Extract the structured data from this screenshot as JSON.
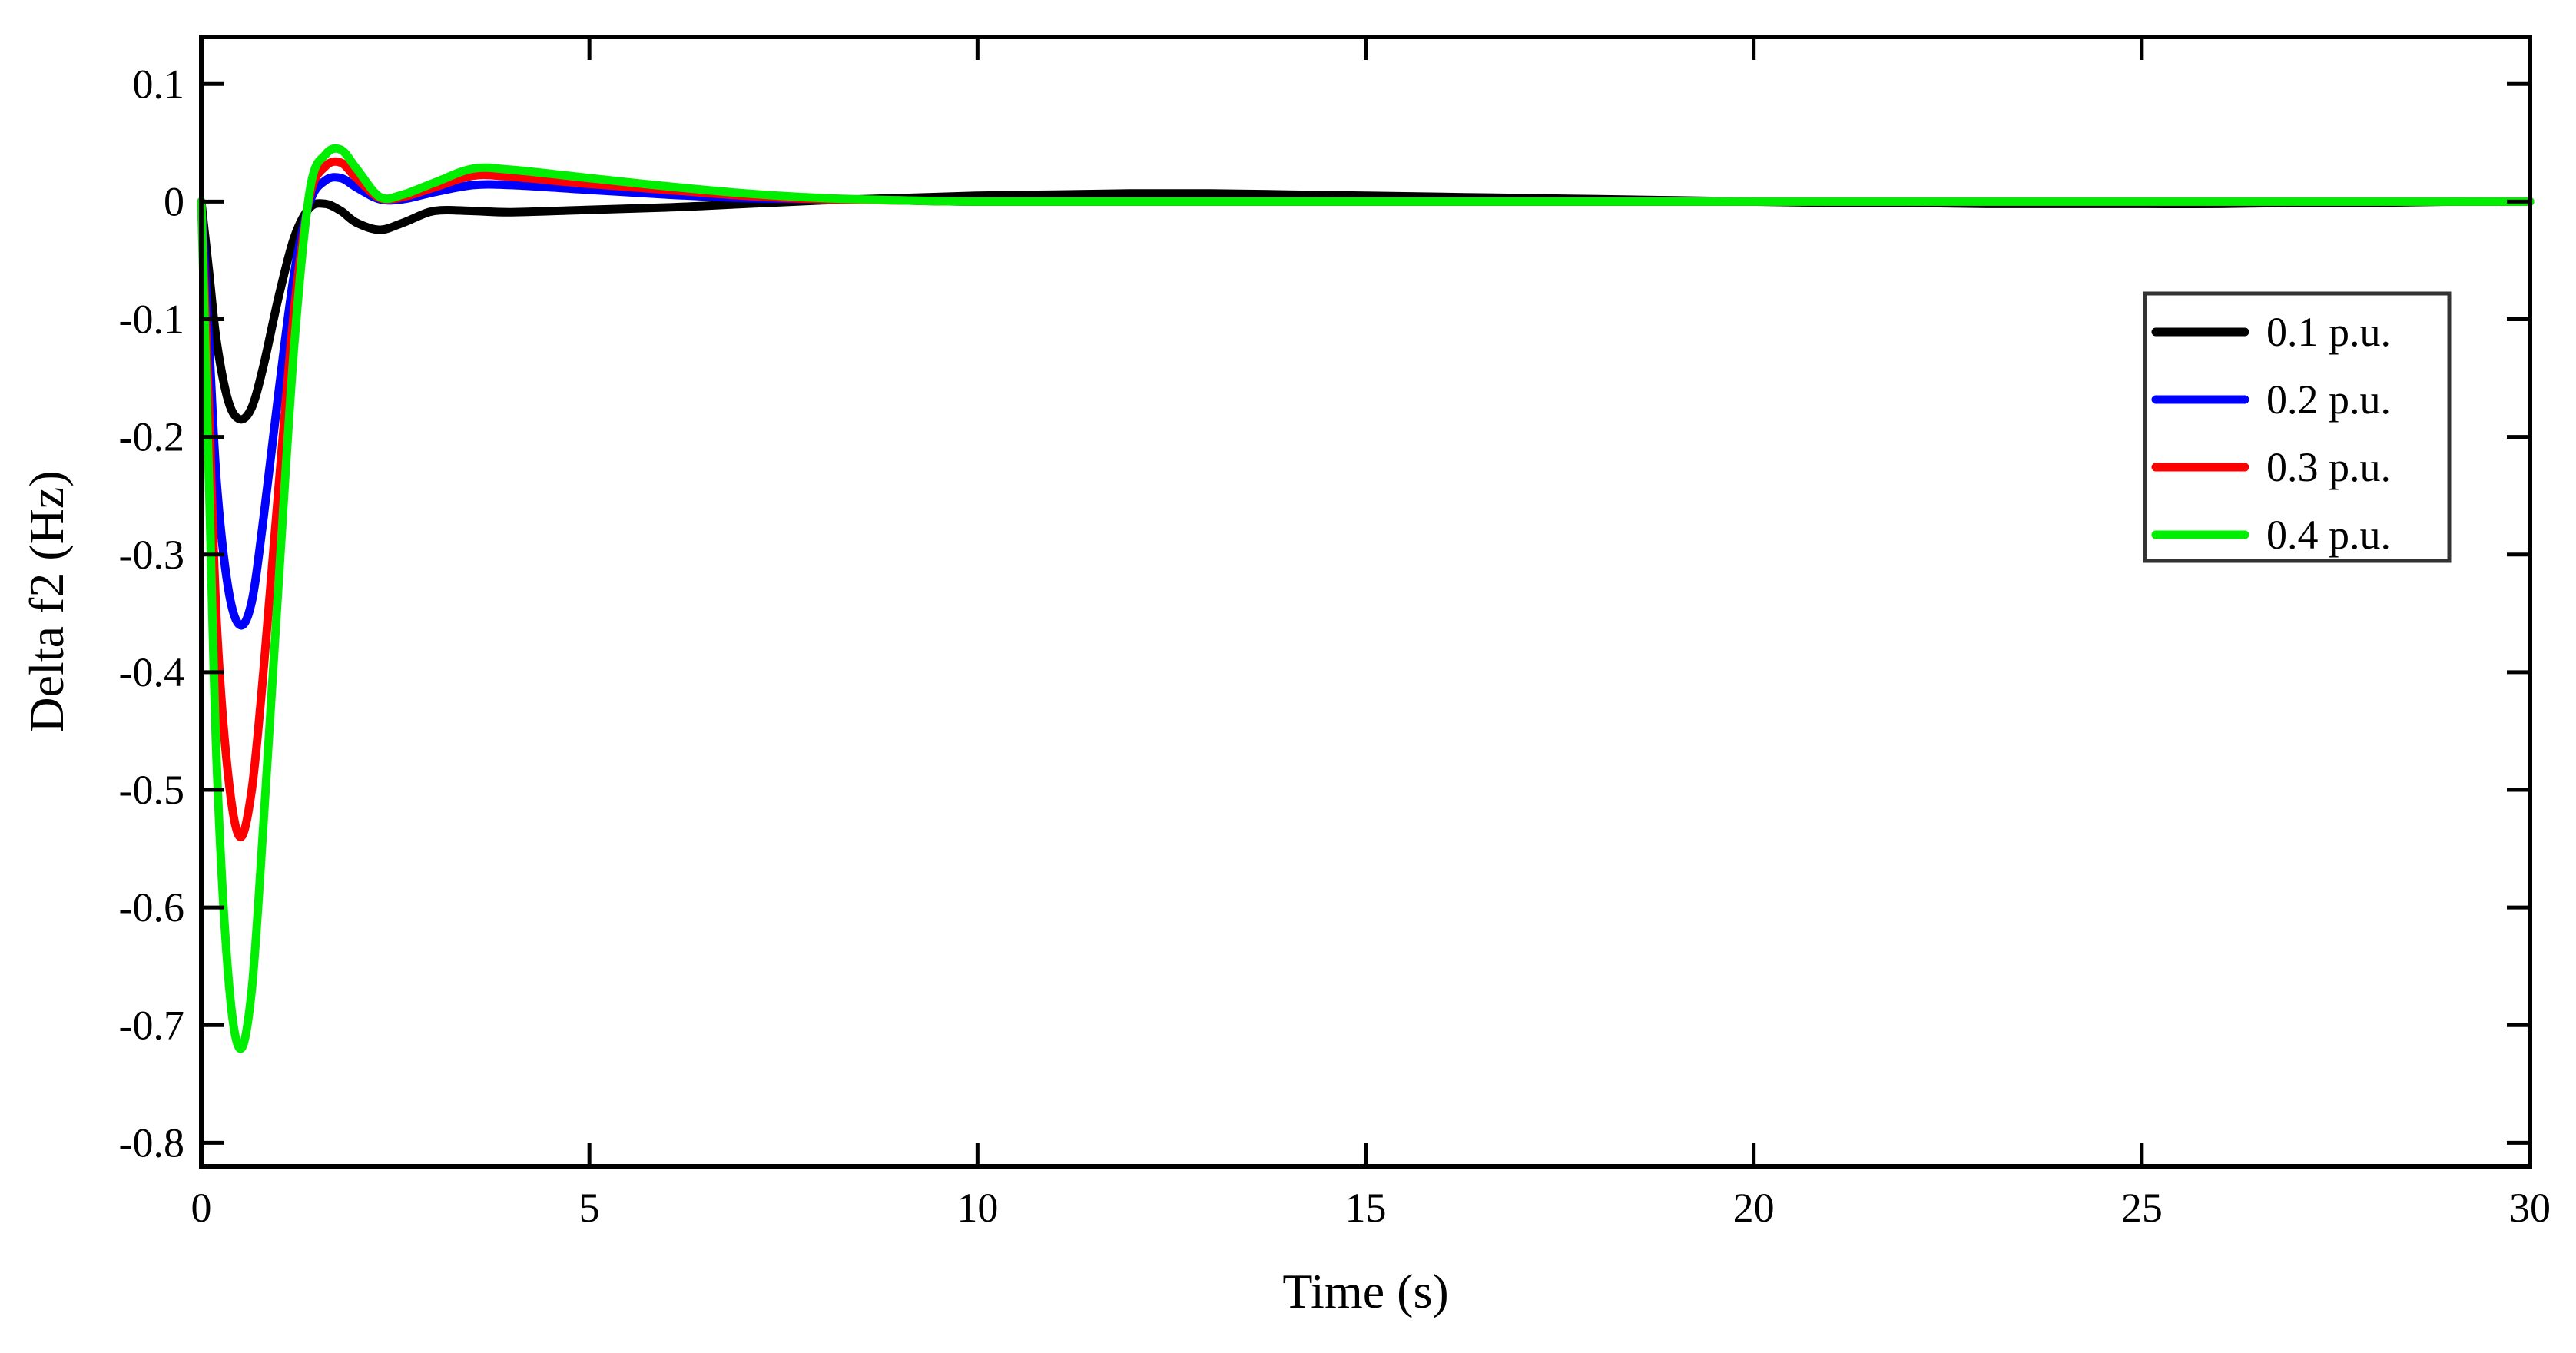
{
  "chart_data": {
    "type": "line",
    "title": "",
    "xlabel": "Time (s)",
    "ylabel": "Delta f2 (Hz)",
    "xlim": [
      0,
      30
    ],
    "ylim": [
      -0.82,
      0.14
    ],
    "x_ticks": [
      0,
      5,
      10,
      15,
      20,
      25,
      30
    ],
    "y_ticks": [
      0.1,
      0,
      -0.1,
      -0.2,
      -0.3,
      -0.4,
      -0.5,
      -0.6,
      -0.7,
      -0.8
    ],
    "x_tick_labels": [
      "0",
      "5",
      "10",
      "15",
      "20",
      "25",
      "30"
    ],
    "y_tick_labels": [
      "0.1",
      "0",
      "-0.1",
      "-0.2",
      "-0.3",
      "-0.4",
      "-0.5",
      "-0.6",
      "-0.7",
      "-0.8"
    ],
    "grid": false,
    "legend_position": "right",
    "series": [
      {
        "name": "0.1 p.u.",
        "color": "#000000",
        "points": [
          [
            0,
            0
          ],
          [
            0.1,
            -0.06
          ],
          [
            0.2,
            -0.12
          ],
          [
            0.35,
            -0.17
          ],
          [
            0.5,
            -0.185
          ],
          [
            0.65,
            -0.175
          ],
          [
            0.8,
            -0.14
          ],
          [
            1.0,
            -0.08
          ],
          [
            1.2,
            -0.03
          ],
          [
            1.4,
            -0.005
          ],
          [
            1.6,
            -0.002
          ],
          [
            1.8,
            -0.008
          ],
          [
            2.0,
            -0.018
          ],
          [
            2.3,
            -0.024
          ],
          [
            2.6,
            -0.018
          ],
          [
            3.0,
            -0.008
          ],
          [
            3.5,
            -0.008
          ],
          [
            4.0,
            -0.009
          ],
          [
            5.0,
            -0.007
          ],
          [
            6.0,
            -0.005
          ],
          [
            7.0,
            -0.002
          ],
          [
            8.0,
            0.001
          ],
          [
            9.0,
            0.003
          ],
          [
            10.0,
            0.005
          ],
          [
            11.0,
            0.006
          ],
          [
            12.0,
            0.007
          ],
          [
            13.0,
            0.007
          ],
          [
            14.0,
            0.006
          ],
          [
            15.0,
            0.005
          ],
          [
            16.0,
            0.004
          ],
          [
            17.0,
            0.003
          ],
          [
            18.0,
            0.002
          ],
          [
            19.0,
            0.001
          ],
          [
            20.0,
            0
          ],
          [
            21.0,
            -0.001
          ],
          [
            22.0,
            -0.001
          ],
          [
            23.0,
            -0.002
          ],
          [
            24.0,
            -0.002
          ],
          [
            25.0,
            -0.002
          ],
          [
            26.0,
            -0.002
          ],
          [
            27.0,
            -0.001
          ],
          [
            28.0,
            -0.001
          ],
          [
            29.0,
            0
          ],
          [
            30.0,
            0
          ]
        ]
      },
      {
        "name": "0.2 p.u.",
        "color": "#0000ff",
        "points": [
          [
            0,
            0
          ],
          [
            0.1,
            -0.12
          ],
          [
            0.2,
            -0.24
          ],
          [
            0.35,
            -0.33
          ],
          [
            0.5,
            -0.36
          ],
          [
            0.65,
            -0.34
          ],
          [
            0.8,
            -0.27
          ],
          [
            1.0,
            -0.16
          ],
          [
            1.2,
            -0.06
          ],
          [
            1.4,
            0.0
          ],
          [
            1.6,
            0.018
          ],
          [
            1.8,
            0.02
          ],
          [
            2.0,
            0.012
          ],
          [
            2.3,
            0.002
          ],
          [
            2.6,
            0.002
          ],
          [
            3.0,
            0.008
          ],
          [
            3.5,
            0.014
          ],
          [
            4.0,
            0.014
          ],
          [
            5.0,
            0.01
          ],
          [
            6.0,
            0.006
          ],
          [
            7.0,
            0.003
          ],
          [
            8.0,
            0.002
          ],
          [
            9.0,
            0.001
          ],
          [
            10.0,
            0
          ],
          [
            12.0,
            0
          ],
          [
            15.0,
            0
          ],
          [
            20.0,
            0
          ],
          [
            25.0,
            0
          ],
          [
            30.0,
            0
          ]
        ]
      },
      {
        "name": "0.3 p.u.",
        "color": "#ff0000",
        "points": [
          [
            0,
            0
          ],
          [
            0.1,
            -0.18
          ],
          [
            0.2,
            -0.36
          ],
          [
            0.35,
            -0.49
          ],
          [
            0.5,
            -0.54
          ],
          [
            0.65,
            -0.5
          ],
          [
            0.8,
            -0.4
          ],
          [
            1.0,
            -0.24
          ],
          [
            1.2,
            -0.09
          ],
          [
            1.4,
            0.005
          ],
          [
            1.6,
            0.03
          ],
          [
            1.8,
            0.033
          ],
          [
            2.0,
            0.02
          ],
          [
            2.3,
            0.003
          ],
          [
            2.6,
            0.004
          ],
          [
            3.0,
            0.012
          ],
          [
            3.5,
            0.022
          ],
          [
            4.0,
            0.021
          ],
          [
            5.0,
            0.015
          ],
          [
            6.0,
            0.01
          ],
          [
            7.0,
            0.005
          ],
          [
            8.0,
            0.002
          ],
          [
            9.0,
            0.001
          ],
          [
            10.0,
            0
          ],
          [
            12.0,
            0
          ],
          [
            15.0,
            0
          ],
          [
            20.0,
            0
          ],
          [
            25.0,
            0
          ],
          [
            30.0,
            0
          ]
        ]
      },
      {
        "name": "0.4 p.u.",
        "color": "#00ee00",
        "points": [
          [
            0,
            0
          ],
          [
            0.1,
            -0.24
          ],
          [
            0.2,
            -0.48
          ],
          [
            0.35,
            -0.66
          ],
          [
            0.5,
            -0.72
          ],
          [
            0.65,
            -0.67
          ],
          [
            0.8,
            -0.53
          ],
          [
            1.0,
            -0.32
          ],
          [
            1.2,
            -0.12
          ],
          [
            1.4,
            0.01
          ],
          [
            1.6,
            0.04
          ],
          [
            1.8,
            0.044
          ],
          [
            2.0,
            0.028
          ],
          [
            2.3,
            0.004
          ],
          [
            2.6,
            0.006
          ],
          [
            3.0,
            0.016
          ],
          [
            3.5,
            0.028
          ],
          [
            4.0,
            0.027
          ],
          [
            5.0,
            0.02
          ],
          [
            6.0,
            0.013
          ],
          [
            7.0,
            0.007
          ],
          [
            8.0,
            0.003
          ],
          [
            9.0,
            0.001
          ],
          [
            10.0,
            0
          ],
          [
            12.0,
            0
          ],
          [
            15.0,
            0
          ],
          [
            20.0,
            0
          ],
          [
            25.0,
            0
          ],
          [
            30.0,
            0
          ]
        ]
      }
    ]
  }
}
